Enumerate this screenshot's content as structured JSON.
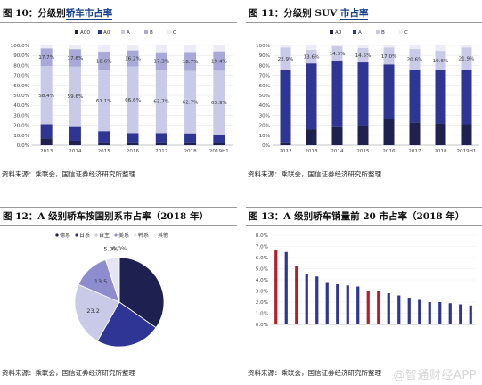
{
  "panels": {
    "p10": {
      "title_prefix": "图 10：",
      "title_main": "分级别",
      "title_highlight": "轿车市占率",
      "source": "资料来源：乘联会，国信证券经济研究所整理"
    },
    "p11": {
      "title_prefix": "图 11：",
      "title_main": "分级别 SUV ",
      "title_highlight": "市占率",
      "source": "资料来源：乘联会，国信证券经济研究所整理"
    },
    "p12": {
      "title_prefix": "图 12：",
      "title_main": "A 级别轿车按国别系市占率（2018 年）",
      "title_highlight": "",
      "source": "资料来源：乘联会，国信证券经济研究所整理"
    },
    "p13": {
      "title_prefix": "图 13：",
      "title_main": "A 级别轿车销量前 20 市占率（2018 年）",
      "title_highlight": "",
      "source": "资料来源：乘联会，国信证券经济研究所整理"
    }
  },
  "watermark": "@智通财经APP",
  "chart_data": [
    {
      "id": "fig10",
      "type": "bar",
      "stacked": true,
      "categories": [
        "2013",
        "2014",
        "2015",
        "2016",
        "2017",
        "2018",
        "2019H1"
      ],
      "legend": [
        "A00",
        "A0",
        "A",
        "B",
        "C"
      ],
      "colors": {
        "A00": "#1e2150",
        "A0": "#2e3594",
        "A": "#c9c9e8",
        "B": "#a9a9d9",
        "C": "#ececf6"
      },
      "series": [
        {
          "name": "A00",
          "values": [
            7.0,
            4.5,
            3.0,
            3.0,
            3.0,
            3.0,
            2.5
          ]
        },
        {
          "name": "A0",
          "values": [
            14.0,
            14.6,
            11.1,
            9.2,
            9.2,
            8.9,
            8.3
          ]
        },
        {
          "name": "A",
          "values": [
            58.4,
            59.6,
            61.1,
            66.6,
            63.7,
            62.7,
            63.9
          ]
        },
        {
          "name": "B",
          "values": [
            17.7,
            17.6,
            18.6,
            16.2,
            17.3,
            18.7,
            19.4
          ]
        },
        {
          "name": "C",
          "values": [
            2.9,
            3.7,
            6.2,
            5.0,
            6.8,
            6.7,
            5.9
          ]
        }
      ],
      "data_labels": {
        "A": [
          "58.4%",
          "59.6%",
          "61.1%",
          "66.6%",
          "63.7%",
          "62.7%",
          "63.9%"
        ],
        "B": [
          "17.7%",
          "17.6%",
          "18.6%",
          "16.2%",
          "17.3%",
          "18.7%",
          "19.4%"
        ]
      },
      "yticks": [
        "0.0%",
        "10.0%",
        "20.0%",
        "30.0%",
        "40.0%",
        "50.0%",
        "60.0%",
        "70.0%",
        "80.0%",
        "90.0%",
        "100.0%"
      ],
      "ylim": [
        0,
        100
      ],
      "legend_position": "top",
      "xlabel": "",
      "ylabel": ""
    },
    {
      "id": "fig11",
      "type": "bar",
      "stacked": true,
      "categories": [
        "2012",
        "2013",
        "2014",
        "2015",
        "2016",
        "2017",
        "2018",
        "2019H1"
      ],
      "legend": [
        "A0",
        "A",
        "B",
        "C"
      ],
      "colors": {
        "A0": "#1e2150",
        "A": "#2e3594",
        "B": "#c9c9e8",
        "C": "#ececf6"
      },
      "series": [
        {
          "name": "A0",
          "values": [
            3.0,
            16.0,
            19.0,
            20.0,
            26.0,
            23.0,
            22.0,
            21.0
          ]
        },
        {
          "name": "A",
          "values": [
            72.0,
            66.0,
            66.0,
            63.0,
            55.0,
            53.0,
            53.0,
            55.0
          ]
        },
        {
          "name": "B",
          "values": [
            22.9,
            13.6,
            14.3,
            14.5,
            17.0,
            20.6,
            19.6,
            21.9
          ]
        },
        {
          "name": "C",
          "values": [
            2.1,
            4.4,
            0.7,
            2.5,
            2.0,
            3.4,
            5.4,
            2.1
          ]
        }
      ],
      "data_labels": {
        "B": [
          "22.9%",
          "13.6%",
          "14.3%",
          "14.5%",
          "17.0%",
          "20.6%",
          "19.6%",
          "21.9%"
        ]
      },
      "yticks": [
        "0%",
        "10%",
        "20%",
        "30%",
        "40%",
        "50%",
        "60%",
        "70%",
        "80%",
        "90%",
        "100%"
      ],
      "ylim": [
        0,
        100
      ],
      "legend_position": "top",
      "xlabel": "",
      "ylabel": ""
    },
    {
      "id": "fig12",
      "type": "pie",
      "labels": [
        "德系",
        "日系",
        "自主",
        "美系",
        "韩系",
        "其他"
      ],
      "values": [
        34.6,
        23.4,
        23.2,
        13.5,
        5.0,
        0.0
      ],
      "display": [
        "",
        "",
        "23.2",
        "13.5",
        "5.0%",
        "0.0%"
      ],
      "colors": [
        "#1e2150",
        "#2e3594",
        "#c9c9e8",
        "#8c8ccf",
        "#e4e4f2",
        "#f4f4f4"
      ],
      "legend_position": "top"
    },
    {
      "id": "fig13",
      "type": "bar",
      "categories": [
        "",
        "",
        "",
        "",
        "",
        "",
        "",
        "",
        "",
        "",
        "",
        "",
        "",
        "",
        "",
        "",
        "",
        "",
        "",
        ""
      ],
      "values": [
        6.7,
        6.5,
        5.2,
        4.5,
        4.3,
        3.8,
        3.6,
        3.5,
        3.4,
        3.0,
        3.0,
        2.8,
        2.6,
        2.4,
        2.2,
        2.0,
        2.0,
        1.9,
        1.8,
        1.7
      ],
      "highlight_indices": [
        0,
        2,
        9,
        10
      ],
      "colors": {
        "normal": "#2e3594",
        "highlight": "#b51f2a"
      },
      "yticks": [
        "0.0%",
        "1.0%",
        "2.0%",
        "3.0%",
        "4.0%",
        "5.0%",
        "6.0%",
        "7.0%",
        "8.0%"
      ],
      "ylim": [
        0,
        8
      ],
      "xlabel": "",
      "ylabel": ""
    }
  ]
}
